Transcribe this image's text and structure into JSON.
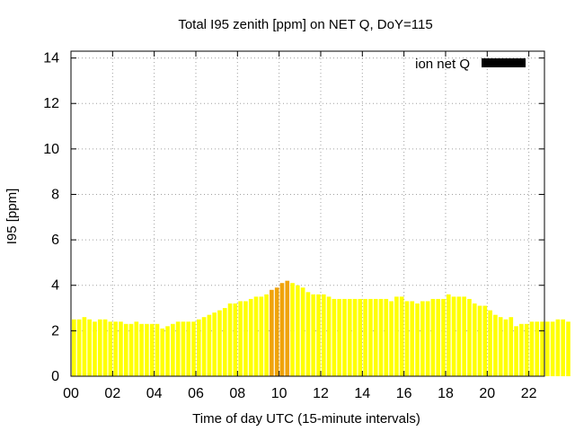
{
  "chart_data": {
    "type": "bar",
    "title": "Total I95 zenith [ppm] on NET Q, DoY=115",
    "xlabel": "Time of day UTC (15-minute intervals)",
    "ylabel": "I95 [ppm]",
    "ylim": [
      0,
      14.3
    ],
    "xlim": [
      0,
      22.75
    ],
    "yticks": [
      0,
      2,
      4,
      6,
      8,
      10,
      12,
      14
    ],
    "xticks": [
      {
        "value": 0,
        "label": "00"
      },
      {
        "value": 2,
        "label": "02"
      },
      {
        "value": 4,
        "label": "04"
      },
      {
        "value": 6,
        "label": "06"
      },
      {
        "value": 8,
        "label": "08"
      },
      {
        "value": 10,
        "label": "10"
      },
      {
        "value": 12,
        "label": "12"
      },
      {
        "value": 14,
        "label": "14"
      },
      {
        "value": 16,
        "label": "16"
      },
      {
        "value": 18,
        "label": "18"
      },
      {
        "value": 20,
        "label": "20"
      },
      {
        "value": 22,
        "label": "22"
      }
    ],
    "grid": true,
    "legend_position": "top-right",
    "series": [
      {
        "name": "ion net Q",
        "legend_color": "#000000",
        "interval_hours": 0.25,
        "values": [
          2.5,
          2.5,
          2.6,
          2.5,
          2.4,
          2.5,
          2.5,
          2.4,
          2.4,
          2.4,
          2.3,
          2.3,
          2.4,
          2.3,
          2.3,
          2.3,
          2.3,
          2.1,
          2.2,
          2.3,
          2.4,
          2.4,
          2.4,
          2.4,
          2.5,
          2.6,
          2.7,
          2.8,
          2.9,
          3.0,
          3.2,
          3.2,
          3.3,
          3.3,
          3.4,
          3.5,
          3.5,
          3.6,
          3.8,
          3.9,
          4.1,
          4.2,
          4.1,
          4.0,
          3.9,
          3.7,
          3.6,
          3.6,
          3.6,
          3.5,
          3.4,
          3.4,
          3.4,
          3.4,
          3.4,
          3.4,
          3.4,
          3.4,
          3.4,
          3.4,
          3.4,
          3.3,
          3.5,
          3.5,
          3.3,
          3.3,
          3.2,
          3.3,
          3.3,
          3.4,
          3.4,
          3.4,
          3.6,
          3.5,
          3.5,
          3.5,
          3.4,
          3.2,
          3.1,
          3.1,
          2.9,
          2.7,
          2.6,
          2.5,
          2.6,
          2.2,
          2.3,
          2.3,
          2.4,
          2.4,
          2.4,
          2.4,
          2.4,
          2.5,
          2.5,
          2.4
        ]
      }
    ],
    "bar_colors": {
      "default": "#ffff00",
      "highlight": "#f0a30a",
      "highlight_range": [
        9.5,
        10.25
      ]
    }
  }
}
